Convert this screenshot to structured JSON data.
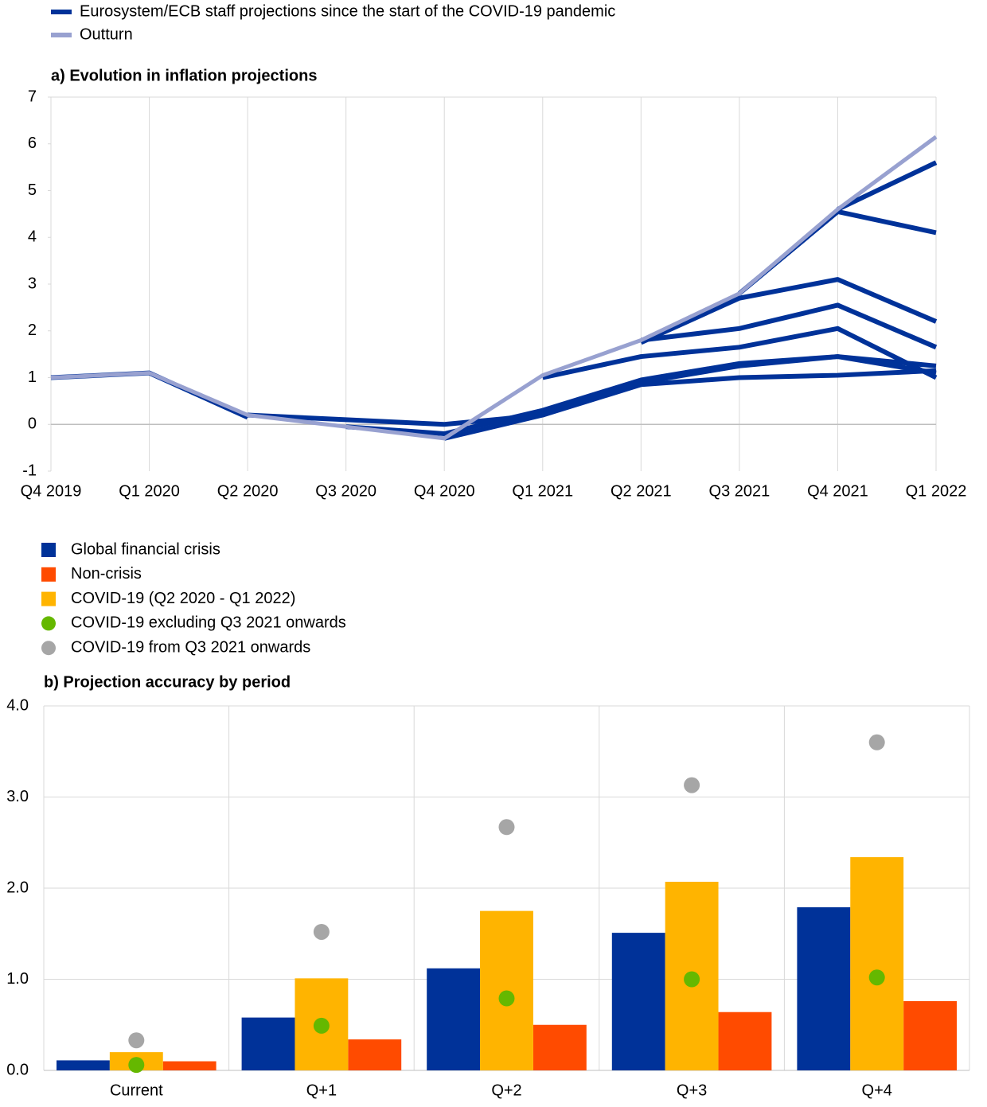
{
  "chart_data": [
    {
      "type": "line",
      "title": "a) Evolution in inflation projections",
      "categories": [
        "Q4 2019",
        "Q1 2020",
        "Q2 2020",
        "Q3 2020",
        "Q4 2020",
        "Q1 2021",
        "Q2 2021",
        "Q3 2021",
        "Q4 2021",
        "Q1 2022"
      ],
      "series": [
        {
          "name": "Eurosystem/ECB staff projections since the start of the COVID-19 pandemic",
          "color": "#003299",
          "values": [
            1.0,
            1.1,
            0.15,
            null,
            null,
            null,
            null,
            null,
            null,
            null
          ]
        },
        {
          "color": "#003299",
          "values": [
            null,
            null,
            0.2,
            0.1,
            0.0,
            0.2,
            0.85,
            1.0,
            1.05,
            1.15
          ]
        },
        {
          "color": "#003299",
          "values": [
            null,
            null,
            null,
            -0.05,
            -0.2,
            0.3,
            0.95,
            1.3,
            1.45,
            1.25
          ]
        },
        {
          "color": "#003299",
          "values": [
            null,
            null,
            null,
            null,
            -0.3,
            0.2,
            0.9,
            1.25,
            1.45,
            1.1
          ]
        },
        {
          "color": "#003299",
          "values": [
            null,
            null,
            null,
            null,
            null,
            1.0,
            1.45,
            1.65,
            2.05,
            1.0
          ]
        },
        {
          "color": "#003299",
          "values": [
            null,
            null,
            null,
            null,
            null,
            null,
            1.8,
            2.05,
            2.55,
            1.65
          ]
        },
        {
          "color": "#003299",
          "values": [
            null,
            null,
            null,
            null,
            null,
            null,
            1.75,
            2.7,
            3.1,
            2.2
          ]
        },
        {
          "color": "#003299",
          "values": [
            null,
            null,
            null,
            null,
            null,
            null,
            null,
            2.8,
            4.55,
            4.1
          ]
        },
        {
          "color": "#003299",
          "values": [
            null,
            null,
            null,
            null,
            null,
            null,
            null,
            null,
            4.6,
            5.6
          ]
        },
        {
          "name": "Outturn",
          "color": "#98a1d0",
          "values": [
            1.0,
            1.1,
            0.2,
            -0.05,
            -0.3,
            1.05,
            1.8,
            2.8,
            4.6,
            6.15
          ]
        }
      ],
      "ylim": [
        -1,
        7
      ],
      "yticks": [
        -1,
        0,
        1,
        2,
        3,
        4,
        5,
        6,
        7
      ],
      "grid": "x"
    },
    {
      "type": "bar",
      "title": "b) Projection accuracy by period",
      "categories": [
        "Current",
        "Q+1",
        "Q+2",
        "Q+3",
        "Q+4"
      ],
      "series": [
        {
          "name": "Global financial crisis",
          "color": "#003299",
          "type": "bar",
          "values": [
            0.11,
            0.58,
            1.12,
            1.51,
            1.79
          ]
        },
        {
          "name": "Non-crisis",
          "color": "#ff4b00",
          "type": "bar",
          "values": [
            0.1,
            0.34,
            0.5,
            0.64,
            0.76
          ]
        },
        {
          "name": "COVID-19 (Q2 2020 - Q1 2022)",
          "color": "#ffb400",
          "type": "bar",
          "values": [
            0.2,
            1.01,
            1.75,
            2.07,
            2.34
          ]
        },
        {
          "name": "COVID-19 excluding Q3 2021 onwards",
          "color": "#65b800",
          "type": "scatter",
          "values": [
            0.06,
            0.49,
            0.79,
            1.0,
            1.02
          ]
        },
        {
          "name": "COVID-19 from Q3 2021 onwards",
          "color": "#a6a6a6",
          "type": "scatter",
          "values": [
            0.33,
            1.52,
            2.67,
            3.13,
            3.6
          ]
        }
      ],
      "ylim": [
        0,
        4
      ],
      "yticks": [
        {
          "value": 0,
          "label": "0.0"
        },
        {
          "value": 1,
          "label": "1.0"
        },
        {
          "value": 2,
          "label": "2.0"
        },
        {
          "value": 3,
          "label": "3.0"
        },
        {
          "value": 4,
          "label": "4.0"
        }
      ],
      "grid": "y"
    }
  ]
}
